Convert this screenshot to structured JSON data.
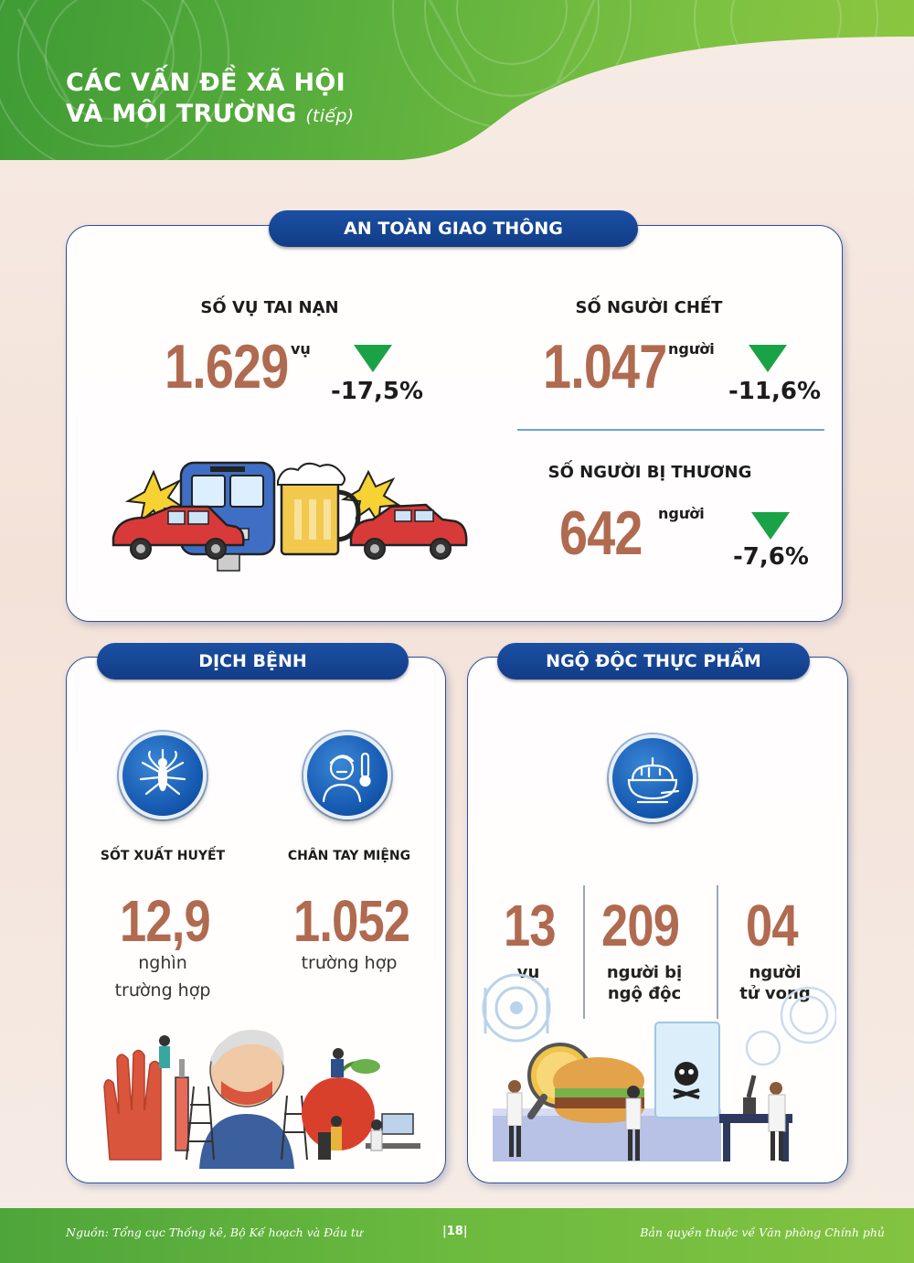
{
  "header": {
    "title_line1": "CÁC VẤN ĐỀ XÃ HỘI",
    "title_line2": "VÀ MÔI TRƯỜNG",
    "title_suffix": "(tiếp)"
  },
  "traffic": {
    "section_title": "AN TOÀN GIAO THÔNG",
    "accidents": {
      "label": "SỐ VỤ TAI NẠN",
      "value": "1.629",
      "unit": "vụ",
      "change": "-17,5%",
      "trend": "down"
    },
    "deaths": {
      "label": "SỐ NGƯỜI CHẾT",
      "value": "1.047",
      "unit": "người",
      "change": "-11,6%",
      "trend": "down"
    },
    "injured": {
      "label": "SỐ NGƯỜI BỊ THƯƠNG",
      "value": "642",
      "unit": "người",
      "change": "-7,6%",
      "trend": "down"
    }
  },
  "disease": {
    "section_title": "DỊCH BỆNH",
    "dengue": {
      "label": "SỐT XUẤT HUYẾT",
      "value": "12,9",
      "unit_line1": "nghìn",
      "unit_line2": "trường hợp",
      "icon": "mosquito-icon"
    },
    "hfmd": {
      "label": "CHÂN TAY MIỆNG",
      "value": "1.052",
      "unit_line1": "trường hợp",
      "icon": "sick-person-thermometer-icon"
    }
  },
  "food_poisoning": {
    "section_title": "NGỘ ĐỘC THỰC PHẨM",
    "icon": "food-bowl-icon",
    "cases": {
      "value": "13",
      "unit": "vụ"
    },
    "poisoned": {
      "value": "209",
      "unit_line1": "người bị",
      "unit_line2": "ngộ độc"
    },
    "deaths": {
      "value": "04",
      "unit_line1": "người",
      "unit_line2": "tử vong"
    }
  },
  "footer": {
    "source": "Nguồn: Tổng cục Thống kê, Bộ Kế hoạch và Đầu tư",
    "page": "|18|",
    "copyright": "Bản quyền thuộc về Văn phòng Chính phủ"
  },
  "colors": {
    "header_green": "#5cb03d",
    "pill_blue": "#1b4fa3",
    "number_brown": "#b06a50",
    "down_arrow_green": "#1aa246"
  }
}
